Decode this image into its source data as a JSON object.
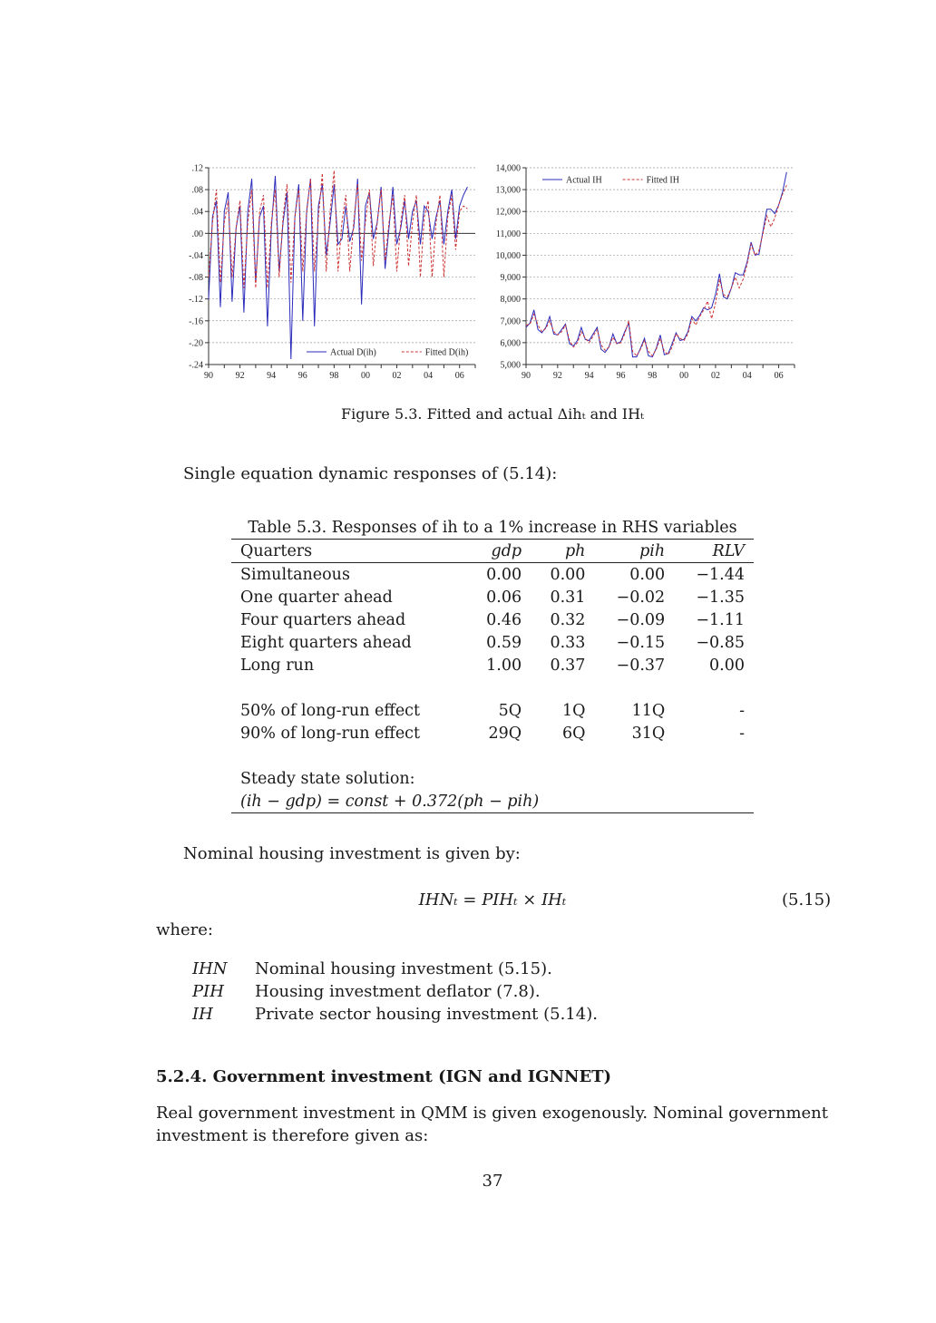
{
  "chart_data": [
    {
      "type": "line",
      "x_tick_labels": [
        "90",
        "92",
        "94",
        "96",
        "98",
        "00",
        "02",
        "04",
        "06"
      ],
      "y_tick_labels": [
        ".12",
        ".08",
        ".04",
        ".00",
        "-.04",
        "-.08",
        "-.12",
        "-.16",
        "-.20",
        "-.24"
      ],
      "ylim": [
        -0.24,
        0.12
      ],
      "xlim": [
        1990,
        2007
      ],
      "grid": true,
      "legend_position": "bottom-right",
      "x": [
        1990.0,
        1990.25,
        1990.5,
        1990.75,
        1991.0,
        1991.25,
        1991.5,
        1991.75,
        1992.0,
        1992.25,
        1992.5,
        1992.75,
        1993.0,
        1993.25,
        1993.5,
        1993.75,
        1994.0,
        1994.25,
        1994.5,
        1994.75,
        1995.0,
        1995.25,
        1995.5,
        1995.75,
        1996.0,
        1996.25,
        1996.5,
        1996.75,
        1997.0,
        1997.25,
        1997.5,
        1997.75,
        1998.0,
        1998.25,
        1998.5,
        1998.75,
        1999.0,
        1999.25,
        1999.5,
        1999.75,
        2000.0,
        2000.25,
        2000.5,
        2000.75,
        2001.0,
        2001.25,
        2001.5,
        2001.75,
        2002.0,
        2002.25,
        2002.5,
        2002.75,
        2003.0,
        2003.25,
        2003.5,
        2003.75,
        2004.0,
        2004.25,
        2004.5,
        2004.75,
        2005.0,
        2005.25,
        2005.5,
        2005.75,
        2006.0,
        2006.25,
        2006.5
      ],
      "series": [
        {
          "name": "Actual D(ih)",
          "color": "#2b2bbb",
          "dash": "solid",
          "values": [
            -0.12,
            0.03,
            0.06,
            -0.135,
            0.04,
            0.075,
            -0.125,
            0.01,
            0.05,
            -0.145,
            0.04,
            0.1,
            -0.09,
            0.03,
            0.05,
            -0.17,
            0.01,
            0.105,
            -0.07,
            0.02,
            0.075,
            -0.23,
            0.03,
            0.09,
            -0.16,
            0.04,
            0.1,
            -0.17,
            0.05,
            0.09,
            -0.04,
            0.02,
            0.09,
            -0.02,
            -0.01,
            0.05,
            -0.015,
            0.01,
            0.1,
            -0.13,
            0.05,
            0.075,
            -0.01,
            0.02,
            0.085,
            -0.065,
            0.01,
            0.085,
            -0.02,
            0.01,
            0.06,
            -0.01,
            0.04,
            0.06,
            -0.02,
            0.05,
            0.04,
            -0.01,
            0.03,
            0.06,
            -0.02,
            0.04,
            0.08,
            -0.01,
            0.05,
            0.07,
            0.085
          ]
        },
        {
          "name": "Fitted D(ih)",
          "color": "#cc3333",
          "dash": "dashed",
          "values": [
            -0.08,
            0.02,
            0.08,
            -0.09,
            0.02,
            0.06,
            -0.08,
            0.01,
            0.06,
            -0.1,
            0.02,
            0.08,
            -0.1,
            0.04,
            0.07,
            -0.1,
            0.02,
            0.08,
            -0.08,
            0.03,
            0.09,
            -0.09,
            0.03,
            0.08,
            -0.07,
            0.04,
            0.1,
            -0.07,
            0.03,
            0.11,
            -0.07,
            0.04,
            0.115,
            -0.07,
            0.02,
            0.07,
            -0.07,
            0.02,
            0.09,
            -0.05,
            0.02,
            0.08,
            -0.06,
            0.02,
            0.08,
            -0.05,
            0.02,
            0.07,
            -0.07,
            0.02,
            0.07,
            -0.06,
            0.02,
            0.07,
            -0.08,
            0.03,
            0.06,
            -0.08,
            0.02,
            0.07,
            -0.08,
            0.03,
            0.07,
            -0.03,
            0.04,
            0.05,
            0.045
          ]
        }
      ]
    },
    {
      "type": "line",
      "x_tick_labels": [
        "90",
        "92",
        "94",
        "96",
        "98",
        "00",
        "02",
        "04",
        "06"
      ],
      "y_tick_labels": [
        "14,000",
        "13,000",
        "12,000",
        "11,000",
        "10,000",
        "9,000",
        "8,000",
        "7,000",
        "6,000",
        "5,000"
      ],
      "ylim": [
        5000,
        14000
      ],
      "xlim": [
        1990,
        2007
      ],
      "grid": true,
      "legend_position": "top-left",
      "x": [
        1990.0,
        1990.25,
        1990.5,
        1990.75,
        1991.0,
        1991.25,
        1991.5,
        1991.75,
        1992.0,
        1992.25,
        1992.5,
        1992.75,
        1993.0,
        1993.25,
        1993.5,
        1993.75,
        1994.0,
        1994.25,
        1994.5,
        1994.75,
        1995.0,
        1995.25,
        1995.5,
        1995.75,
        1996.0,
        1996.25,
        1996.5,
        1996.75,
        1997.0,
        1997.25,
        1997.5,
        1997.75,
        1998.0,
        1998.25,
        1998.5,
        1998.75,
        1999.0,
        1999.25,
        1999.5,
        1999.75,
        2000.0,
        2000.25,
        2000.5,
        2000.75,
        2001.0,
        2001.25,
        2001.5,
        2001.75,
        2002.0,
        2002.25,
        2002.5,
        2002.75,
        2003.0,
        2003.25,
        2003.5,
        2003.75,
        2004.0,
        2004.25,
        2004.5,
        2004.75,
        2005.0,
        2005.25,
        2005.5,
        2005.75,
        2006.0,
        2006.25,
        2006.5
      ],
      "series": [
        {
          "name": "Actual IH",
          "color": "#2b2bbb",
          "dash": "solid",
          "values": [
            6700,
            6900,
            7500,
            6600,
            6450,
            6700,
            7200,
            6400,
            6350,
            6600,
            6850,
            5950,
            5850,
            6100,
            6700,
            6150,
            6100,
            6400,
            6700,
            5700,
            5550,
            5800,
            6400,
            5950,
            6050,
            6500,
            6900,
            5350,
            5350,
            5750,
            6200,
            5400,
            5350,
            5750,
            6350,
            5450,
            5500,
            5950,
            6450,
            6100,
            6150,
            6500,
            7200,
            7000,
            7250,
            7600,
            7500,
            7600,
            8200,
            9150,
            8100,
            8000,
            8500,
            9200,
            9100,
            9100,
            9700,
            10600,
            10000,
            10050,
            11100,
            12100,
            12100,
            11900,
            12300,
            12900,
            13800
          ]
        },
        {
          "name": "Fitted IH",
          "color": "#cc3333",
          "dash": "dashed",
          "values": [
            6800,
            6850,
            7300,
            6800,
            6500,
            6650,
            7000,
            6500,
            6350,
            6500,
            6800,
            6100,
            5800,
            6000,
            6500,
            6200,
            6000,
            6300,
            6600,
            5900,
            5650,
            5800,
            6250,
            5950,
            6000,
            6400,
            7000,
            5600,
            5400,
            5700,
            6100,
            5600,
            5400,
            5700,
            6200,
            5600,
            5450,
            5800,
            6400,
            6200,
            6100,
            6400,
            7100,
            6800,
            7200,
            7500,
            7900,
            7100,
            7800,
            8900,
            8200,
            8100,
            8500,
            9000,
            8500,
            8900,
            9600,
            10500,
            10000,
            10200,
            11000,
            11800,
            11300,
            11700,
            12300,
            12800,
            13200
          ]
        }
      ]
    }
  ],
  "figure_caption": "Figure 5.3. Fitted and actual Δihₜ and IHₜ",
  "intro": "Single equation dynamic responses of (5.14):",
  "table": {
    "title": "Table 5.3. Responses of ih to a 1% increase in RHS variables",
    "headers": [
      "Quarters",
      "gdp",
      "ph",
      "pih",
      "RLV"
    ],
    "rows": [
      [
        "Simultaneous",
        "0.00",
        "0.00",
        "0.00",
        "−1.44"
      ],
      [
        "One quarter ahead",
        "0.06",
        "0.31",
        "−0.02",
        "−1.35"
      ],
      [
        "Four quarters ahead",
        "0.46",
        "0.32",
        "−0.09",
        "−1.11"
      ],
      [
        "Eight quarters ahead",
        "0.59",
        "0.33",
        "−0.15",
        "−0.85"
      ],
      [
        "Long run",
        "1.00",
        "0.37",
        "−0.37",
        "0.00"
      ]
    ],
    "effects": [
      [
        "50% of long-run effect",
        "5Q",
        "1Q",
        "11Q",
        "-"
      ],
      [
        "90% of long-run effect",
        "29Q",
        "6Q",
        "31Q",
        "-"
      ]
    ],
    "steady_label": "Steady state solution:",
    "steady_eq": "(ih − gdp) = const + 0.372(ph − pih)"
  },
  "nominal_intro": "Nominal housing investment is given by:",
  "equation": "IHNₜ = PIHₜ × IHₜ",
  "equation_number": "(5.15)",
  "where": "where:",
  "definitions": [
    [
      "IHN",
      "Nominal housing investment (5.15)."
    ],
    [
      "PIH",
      "Housing investment deflator (7.8)."
    ],
    [
      "IH",
      "Private sector housing investment (5.14)."
    ]
  ],
  "section_heading": "5.2.4. Government investment (IGN and IGNNET)",
  "body_text": "Real government investment in QMM is given exogenously. Nominal government investment is therefore given as:",
  "page_number": "37"
}
